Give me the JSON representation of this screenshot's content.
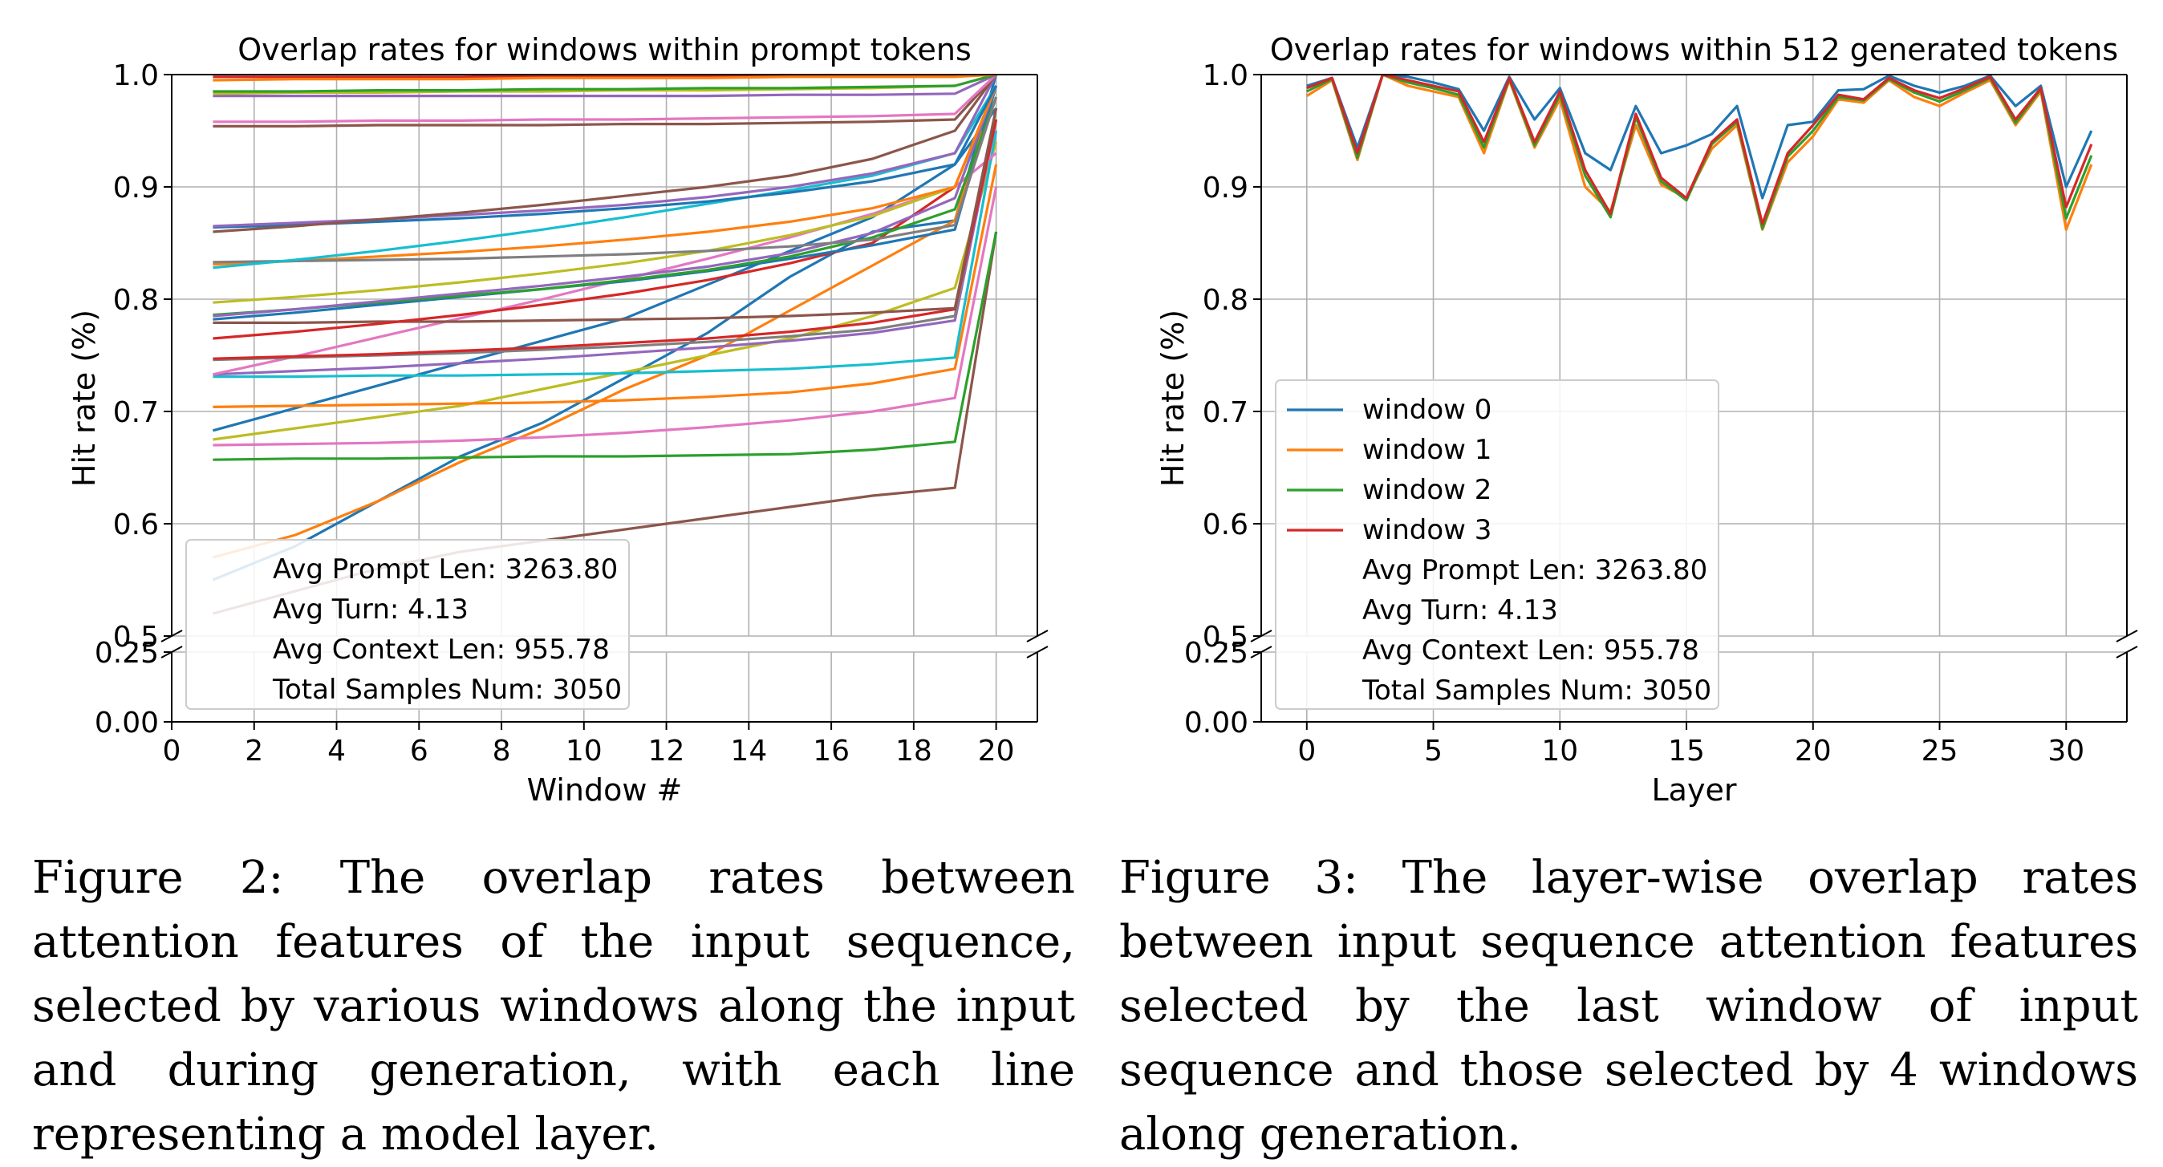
{
  "colors": [
    "#1f77b4",
    "#ff7f0e",
    "#2ca02c",
    "#d62728",
    "#9467bd",
    "#8c564b",
    "#e377c2",
    "#7f7f7f",
    "#bcbd22",
    "#17becf"
  ],
  "chart_data": [
    {
      "type": "line",
      "title": "Overlap rates for windows within prompt tokens",
      "xlabel": "Window #",
      "ylabel": "Hit rate (%)",
      "xlim": [
        0,
        21
      ],
      "ylim": [
        0.5,
        1.0
      ],
      "ylim_lower": [
        0.0,
        0.25
      ],
      "x_ticks": [
        0,
        2,
        4,
        6,
        8,
        10,
        12,
        14,
        16,
        18,
        20
      ],
      "y_ticks": [
        0.5,
        0.6,
        0.7,
        0.8,
        0.9,
        1.0
      ],
      "y_ticks_lower": [
        0.0,
        0.25
      ],
      "y_tick_labels": [
        "0.5",
        "0.6",
        "0.7",
        "0.8",
        "0.9",
        "1.0"
      ],
      "y_tick_labels_lower": [
        "0.00",
        "0.25"
      ],
      "grid": true,
      "broken_axis": true,
      "legend": {
        "placement": "lower-left",
        "entries": [
          "Avg Prompt Len: 3263.80",
          "Avg Turn: 4.13",
          "Avg Context Len: 955.78",
          "Total Samples Num: 3050"
        ]
      },
      "x": [
        1,
        3,
        5,
        7,
        9,
        11,
        13,
        15,
        17,
        19,
        20
      ],
      "series": [
        {
          "color": "#1f77b4",
          "values": [
            0.55,
            0.58,
            0.62,
            0.66,
            0.69,
            0.73,
            0.77,
            0.82,
            0.86,
            0.87,
            1.0
          ]
        },
        {
          "color": "#ff7f0e",
          "values": [
            0.57,
            0.59,
            0.62,
            0.655,
            0.685,
            0.72,
            0.75,
            0.79,
            0.83,
            0.87,
            0.99
          ]
        },
        {
          "color": "#8c564b",
          "values": [
            0.52,
            0.54,
            0.56,
            0.575,
            0.585,
            0.595,
            0.605,
            0.615,
            0.625,
            0.632,
            0.86
          ]
        },
        {
          "color": "#2ca02c",
          "values": [
            0.657,
            0.658,
            0.658,
            0.659,
            0.66,
            0.66,
            0.661,
            0.662,
            0.666,
            0.673,
            0.86
          ]
        },
        {
          "color": "#e377c2",
          "values": [
            0.67,
            0.671,
            0.672,
            0.674,
            0.677,
            0.681,
            0.686,
            0.692,
            0.7,
            0.712,
            0.9
          ]
        },
        {
          "color": "#bcbd22",
          "values": [
            0.675,
            0.685,
            0.695,
            0.705,
            0.72,
            0.735,
            0.75,
            0.765,
            0.785,
            0.81,
            0.94
          ]
        },
        {
          "color": "#1f77b4",
          "values": [
            0.683,
            0.703,
            0.723,
            0.743,
            0.763,
            0.783,
            0.813,
            0.843,
            0.873,
            0.92,
            0.97
          ]
        },
        {
          "color": "#ff7f0e",
          "values": [
            0.704,
            0.705,
            0.706,
            0.707,
            0.708,
            0.71,
            0.713,
            0.717,
            0.725,
            0.738,
            0.92
          ]
        },
        {
          "color": "#17becf",
          "values": [
            0.731,
            0.731,
            0.732,
            0.732,
            0.733,
            0.734,
            0.736,
            0.738,
            0.742,
            0.748,
            0.95
          ]
        },
        {
          "color": "#9467bd",
          "values": [
            0.733,
            0.736,
            0.739,
            0.743,
            0.747,
            0.752,
            0.757,
            0.763,
            0.77,
            0.781,
            0.96
          ]
        },
        {
          "color": "#e377c2",
          "values": [
            0.733,
            0.749,
            0.766,
            0.783,
            0.8,
            0.818,
            0.836,
            0.855,
            0.876,
            0.9,
            0.93
          ]
        },
        {
          "color": "#7f7f7f",
          "values": [
            0.746,
            0.748,
            0.75,
            0.752,
            0.755,
            0.758,
            0.762,
            0.767,
            0.773,
            0.785,
            0.97
          ]
        },
        {
          "color": "#d62728",
          "values": [
            0.747,
            0.749,
            0.751,
            0.754,
            0.757,
            0.761,
            0.765,
            0.771,
            0.779,
            0.791,
            0.96
          ]
        },
        {
          "color": "#8c564b",
          "values": [
            0.779,
            0.779,
            0.78,
            0.78,
            0.781,
            0.782,
            0.783,
            0.785,
            0.788,
            0.792,
            0.97
          ]
        },
        {
          "color": "#d62728",
          "values": [
            0.765,
            0.771,
            0.778,
            0.786,
            0.795,
            0.805,
            0.817,
            0.832,
            0.85,
            0.9,
            0.99
          ]
        },
        {
          "color": "#1f77b4",
          "values": [
            0.782,
            0.788,
            0.795,
            0.802,
            0.809,
            0.816,
            0.825,
            0.836,
            0.848,
            0.862,
            0.99
          ]
        },
        {
          "color": "#2ca02c",
          "values": [
            0.786,
            0.791,
            0.797,
            0.803,
            0.809,
            0.817,
            0.826,
            0.838,
            0.855,
            0.88,
            0.98
          ]
        },
        {
          "color": "#9467bd",
          "values": [
            0.785,
            0.791,
            0.798,
            0.805,
            0.812,
            0.82,
            0.829,
            0.841,
            0.859,
            0.89,
            0.99
          ]
        },
        {
          "color": "#bcbd22",
          "values": [
            0.797,
            0.802,
            0.808,
            0.815,
            0.823,
            0.832,
            0.843,
            0.857,
            0.874,
            0.9,
            0.99
          ]
        },
        {
          "color": "#ff7f0e",
          "values": [
            0.831,
            0.834,
            0.838,
            0.842,
            0.847,
            0.853,
            0.86,
            0.869,
            0.881,
            0.9,
            0.99
          ]
        },
        {
          "color": "#7f7f7f",
          "values": [
            0.833,
            0.834,
            0.835,
            0.836,
            0.838,
            0.84,
            0.843,
            0.847,
            0.853,
            0.866,
            0.98
          ]
        },
        {
          "color": "#17becf",
          "values": [
            0.828,
            0.835,
            0.843,
            0.852,
            0.862,
            0.873,
            0.885,
            0.897,
            0.91,
            0.93,
            0.99
          ]
        },
        {
          "color": "#1f77b4",
          "values": [
            0.864,
            0.866,
            0.869,
            0.872,
            0.876,
            0.881,
            0.887,
            0.895,
            0.905,
            0.92,
            0.99
          ]
        },
        {
          "color": "#9467bd",
          "values": [
            0.865,
            0.868,
            0.871,
            0.875,
            0.879,
            0.884,
            0.891,
            0.9,
            0.912,
            0.93,
            1.0
          ]
        },
        {
          "color": "#8c564b",
          "values": [
            0.86,
            0.865,
            0.871,
            0.877,
            0.884,
            0.892,
            0.9,
            0.91,
            0.925,
            0.95,
            1.0
          ]
        },
        {
          "color": "#8c564b",
          "values": [
            0.954,
            0.954,
            0.955,
            0.955,
            0.955,
            0.956,
            0.956,
            0.957,
            0.958,
            0.96,
            1.0
          ]
        },
        {
          "color": "#e377c2",
          "values": [
            0.958,
            0.958,
            0.959,
            0.959,
            0.96,
            0.96,
            0.961,
            0.962,
            0.963,
            0.965,
            1.0
          ]
        },
        {
          "color": "#9467bd",
          "values": [
            0.981,
            0.981,
            0.981,
            0.981,
            0.981,
            0.981,
            0.981,
            0.982,
            0.982,
            0.983,
            1.0
          ]
        },
        {
          "color": "#bcbd22",
          "values": [
            0.983,
            0.984,
            0.984,
            0.985,
            0.985,
            0.986,
            0.986,
            0.987,
            0.988,
            0.99,
            1.0
          ]
        },
        {
          "color": "#2ca02c",
          "values": [
            0.985,
            0.985,
            0.986,
            0.986,
            0.987,
            0.987,
            0.988,
            0.988,
            0.989,
            0.99,
            1.0
          ]
        },
        {
          "color": "#d62728",
          "values": [
            0.998,
            0.998,
            0.998,
            0.998,
            0.999,
            0.999,
            0.999,
            0.999,
            0.999,
            0.999,
            1.0
          ]
        },
        {
          "color": "#ff7f0e",
          "values": [
            0.995,
            0.996,
            0.996,
            0.996,
            0.997,
            0.997,
            0.997,
            0.998,
            0.998,
            0.998,
            1.0
          ]
        }
      ]
    },
    {
      "type": "line",
      "title": "Overlap rates for windows within 512 generated tokens",
      "xlabel": "Layer",
      "ylabel": "Hit rate (%)",
      "xlim": [
        -1.8,
        32.4
      ],
      "ylim": [
        0.5,
        1.0
      ],
      "ylim_lower": [
        0.0,
        0.25
      ],
      "x_ticks": [
        0,
        5,
        10,
        15,
        20,
        25,
        30
      ],
      "y_ticks": [
        0.5,
        0.6,
        0.7,
        0.8,
        0.9,
        1.0
      ],
      "y_ticks_lower": [
        0.0,
        0.25
      ],
      "y_tick_labels": [
        "0.5",
        "0.6",
        "0.7",
        "0.8",
        "0.9",
        "1.0"
      ],
      "y_tick_labels_lower": [
        "0.00",
        "0.25"
      ],
      "grid": true,
      "broken_axis": true,
      "legend": {
        "placement": "lower-left",
        "entries": [
          "window 0",
          "window 1",
          "window 2",
          "window 3",
          "Avg Prompt Len: 3263.80",
          "Avg Turn: 4.13",
          "Avg Context Len: 955.78",
          "Total Samples Num: 3050"
        ]
      },
      "x": [
        0,
        1,
        2,
        3,
        4,
        5,
        6,
        7,
        8,
        9,
        10,
        11,
        12,
        13,
        14,
        15,
        16,
        17,
        18,
        19,
        20,
        21,
        22,
        23,
        24,
        25,
        26,
        27,
        28,
        29,
        30,
        31
      ],
      "series": [
        {
          "name": "window 0",
          "color": "#1f77b4",
          "values": [
            0.99,
            0.997,
            0.935,
            1.0,
            0.998,
            0.993,
            0.987,
            0.95,
            0.998,
            0.96,
            0.988,
            0.93,
            0.915,
            0.972,
            0.93,
            0.937,
            0.947,
            0.972,
            0.89,
            0.955,
            0.958,
            0.986,
            0.987,
            0.999,
            0.99,
            0.984,
            0.99,
            0.999,
            0.972,
            0.99,
            0.9,
            0.95
          ]
        },
        {
          "name": "window 1",
          "color": "#ff7f0e",
          "values": [
            0.981,
            0.995,
            0.924,
            1.0,
            0.99,
            0.985,
            0.98,
            0.93,
            0.995,
            0.935,
            0.978,
            0.9,
            0.878,
            0.955,
            0.902,
            0.89,
            0.934,
            0.955,
            0.862,
            0.922,
            0.945,
            0.978,
            0.975,
            0.995,
            0.98,
            0.972,
            0.984,
            0.995,
            0.955,
            0.985,
            0.862,
            0.92
          ]
        },
        {
          "name": "window 2",
          "color": "#2ca02c",
          "values": [
            0.985,
            0.996,
            0.926,
            1.0,
            0.993,
            0.988,
            0.982,
            0.935,
            0.996,
            0.937,
            0.982,
            0.91,
            0.873,
            0.962,
            0.905,
            0.888,
            0.938,
            0.958,
            0.863,
            0.927,
            0.95,
            0.98,
            0.977,
            0.996,
            0.984,
            0.976,
            0.986,
            0.997,
            0.957,
            0.987,
            0.872,
            0.928
          ]
        },
        {
          "name": "window 3",
          "color": "#d62728",
          "values": [
            0.988,
            0.997,
            0.93,
            1.0,
            0.995,
            0.99,
            0.985,
            0.94,
            0.997,
            0.94,
            0.985,
            0.915,
            0.876,
            0.965,
            0.908,
            0.89,
            0.94,
            0.96,
            0.867,
            0.93,
            0.955,
            0.982,
            0.978,
            0.997,
            0.986,
            0.979,
            0.988,
            0.998,
            0.96,
            0.988,
            0.882,
            0.938
          ]
        }
      ]
    }
  ],
  "captions": {
    "left": "Figure 2: The overlap rates between attention features of the input sequence, selected by various windows along the input and during generation, with each line representing a model layer.",
    "right": "Figure 3: The layer-wise overlap rates between input sequence attention features selected by the last window of input sequence and those selected by 4 windows along generation."
  }
}
